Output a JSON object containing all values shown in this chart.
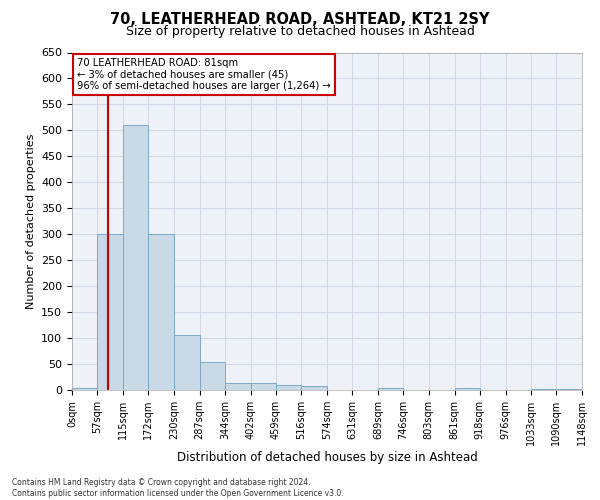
{
  "title": "70, LEATHERHEAD ROAD, ASHTEAD, KT21 2SY",
  "subtitle": "Size of property relative to detached houses in Ashtead",
  "xlabel": "Distribution of detached houses by size in Ashtead",
  "ylabel": "Number of detached properties",
  "bin_edges": [
    0,
    57,
    115,
    172,
    230,
    287,
    344,
    402,
    459,
    516,
    574,
    631,
    689,
    746,
    803,
    861,
    918,
    976,
    1033,
    1090,
    1148
  ],
  "bar_heights": [
    3,
    300,
    510,
    300,
    105,
    53,
    13,
    13,
    10,
    8,
    0,
    0,
    4,
    0,
    0,
    3,
    0,
    0,
    2,
    2
  ],
  "bar_color": "#c9d9e8",
  "bar_edgecolor": "#7aaac8",
  "grid_color": "#d0d8e8",
  "property_line_x": 81,
  "property_line_color": "#cc0000",
  "annotation_text": "70 LEATHERHEAD ROAD: 81sqm\n← 3% of detached houses are smaller (45)\n96% of semi-detached houses are larger (1,264) →",
  "annotation_box_color": "#ffffff",
  "annotation_box_edgecolor": "#cc0000",
  "ylim": [
    0,
    650
  ],
  "yticks": [
    0,
    50,
    100,
    150,
    200,
    250,
    300,
    350,
    400,
    450,
    500,
    550,
    600,
    650
  ],
  "footer_text": "Contains HM Land Registry data © Crown copyright and database right 2024.\nContains public sector information licensed under the Open Government Licence v3.0.",
  "background_color": "#ffffff",
  "plot_background": "#eef2f8"
}
